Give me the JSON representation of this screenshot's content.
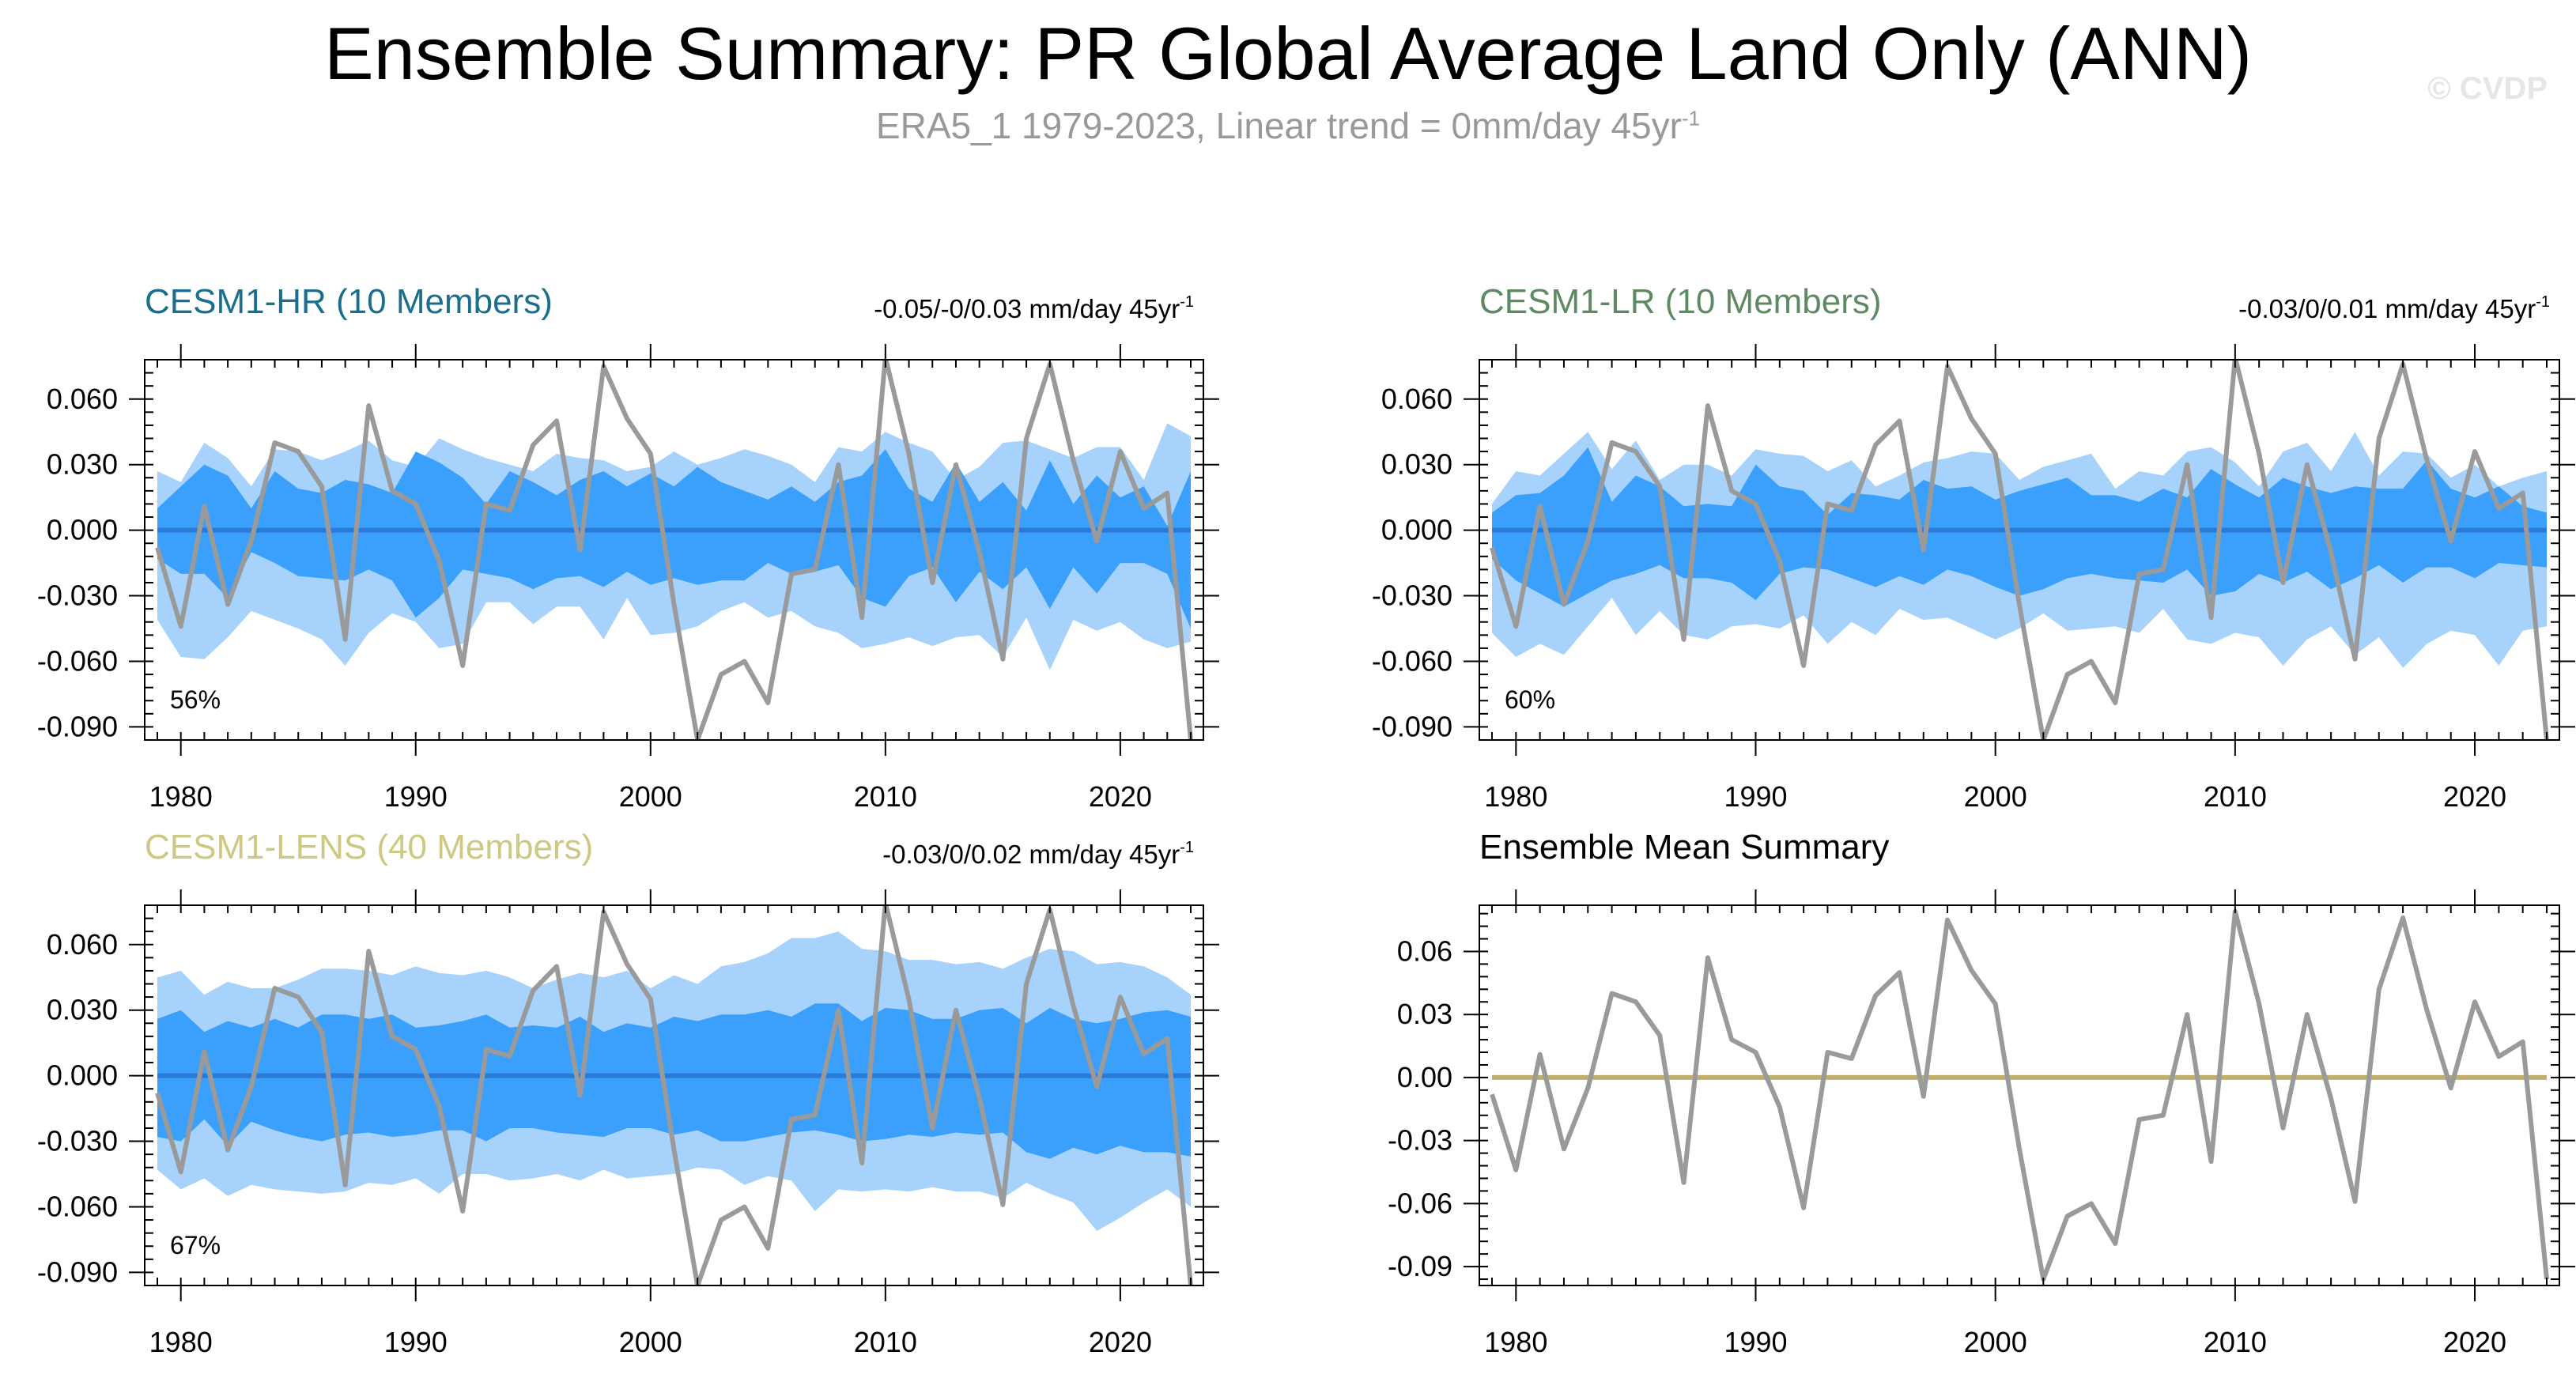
{
  "title": "Ensemble Summary: PR Global Average Land Only (ANN)",
  "subtitle": {
    "text": "ERA5_1 1979-2023, Linear trend = 0mm/day 45yr",
    "superscript": "-1"
  },
  "watermark": "© CVDP",
  "colors": {
    "obs": "#9a9a9a",
    "outer_band": "#a6d2fc",
    "inner_band": "#3ba0fb",
    "ens_mean": "#2a7ad6",
    "hr_title": "#1a6e8e",
    "lr_title": "#5d8a62",
    "lens_title": "#cdc882",
    "summary_mean": "#bfae6c"
  },
  "chart_data": [
    {
      "type": "area",
      "title": "CESM1-HR (10 Members)",
      "title_color_key": "hr_title",
      "trend_label": "-0.05/-0/0.03 mm/day 45yr",
      "trend_sup": "-1",
      "percent_label": "56%",
      "x_start": 1979,
      "ylim": [
        -0.096,
        0.078
      ],
      "yticks": [
        0.06,
        0.03,
        0.0,
        -0.03,
        -0.06,
        -0.09
      ],
      "ytick_labels": [
        "0.060",
        "0.030",
        "0.000",
        "-0.030",
        "-0.060",
        "-0.090"
      ],
      "xticks": [
        1980,
        1990,
        2000,
        2010,
        2020
      ],
      "xtick_labels": [
        "1980",
        "1990",
        "2000",
        "2010",
        "2020"
      ],
      "outer_upper": [
        0.027,
        0.022,
        0.04,
        0.033,
        0.02,
        0.037,
        0.036,
        0.032,
        0.036,
        0.041,
        0.032,
        0.029,
        0.042,
        0.037,
        0.033,
        0.03,
        0.027,
        0.035,
        0.033,
        0.032,
        0.027,
        0.029,
        0.036,
        0.03,
        0.033,
        0.037,
        0.034,
        0.03,
        0.022,
        0.038,
        0.036,
        0.045,
        0.04,
        0.036,
        0.023,
        0.029,
        0.04,
        0.041,
        0.037,
        0.033,
        0.038,
        0.038,
        0.023,
        0.049,
        0.043
      ],
      "inner_upper": [
        0.01,
        0.02,
        0.03,
        0.025,
        0.01,
        0.027,
        0.019,
        0.017,
        0.023,
        0.021,
        0.017,
        0.036,
        0.031,
        0.024,
        0.012,
        0.027,
        0.022,
        0.016,
        0.023,
        0.027,
        0.02,
        0.026,
        0.02,
        0.029,
        0.022,
        0.018,
        0.014,
        0.02,
        0.013,
        0.022,
        0.025,
        0.037,
        0.019,
        0.013,
        0.031,
        0.013,
        0.022,
        0.009,
        0.032,
        0.012,
        0.025,
        0.015,
        0.02,
        0.002,
        0.027
      ],
      "inner_lower": [
        -0.013,
        -0.02,
        -0.02,
        -0.031,
        -0.01,
        -0.015,
        -0.021,
        -0.022,
        -0.023,
        -0.018,
        -0.023,
        -0.04,
        -0.031,
        -0.018,
        -0.02,
        -0.022,
        -0.027,
        -0.022,
        -0.021,
        -0.026,
        -0.019,
        -0.025,
        -0.022,
        -0.025,
        -0.023,
        -0.023,
        -0.015,
        -0.02,
        -0.019,
        -0.016,
        -0.031,
        -0.035,
        -0.021,
        -0.017,
        -0.033,
        -0.019,
        -0.027,
        -0.017,
        -0.036,
        -0.017,
        -0.029,
        -0.015,
        -0.015,
        -0.02,
        -0.045
      ],
      "outer_lower": [
        -0.041,
        -0.058,
        -0.059,
        -0.049,
        -0.037,
        -0.041,
        -0.045,
        -0.05,
        -0.062,
        -0.047,
        -0.038,
        -0.042,
        -0.054,
        -0.052,
        -0.033,
        -0.033,
        -0.043,
        -0.035,
        -0.035,
        -0.05,
        -0.031,
        -0.048,
        -0.047,
        -0.044,
        -0.037,
        -0.033,
        -0.04,
        -0.037,
        -0.044,
        -0.047,
        -0.054,
        -0.052,
        -0.049,
        -0.053,
        -0.049,
        -0.048,
        -0.058,
        -0.04,
        -0.064,
        -0.041,
        -0.046,
        -0.042,
        -0.05,
        -0.054,
        -0.051
      ],
      "ens_mean": [
        0,
        0,
        0,
        0,
        0,
        0,
        0,
        0,
        0,
        0,
        0,
        0,
        0,
        0,
        0,
        0,
        0,
        0,
        0,
        0,
        0,
        0,
        0,
        0,
        0,
        0,
        0,
        0,
        0,
        0,
        0,
        0,
        0,
        0,
        0,
        0,
        0,
        0,
        0,
        0,
        0,
        0,
        0,
        0,
        0
      ],
      "obs": [
        -0.008,
        -0.044,
        0.011,
        -0.034,
        -0.005,
        0.04,
        0.036,
        0.02,
        -0.05,
        0.057,
        0.018,
        0.012,
        -0.014,
        -0.062,
        0.012,
        0.009,
        0.039,
        0.05,
        -0.009,
        0.075,
        0.051,
        0.035,
        -0.034,
        -0.096,
        -0.066,
        -0.06,
        -0.079,
        -0.02,
        -0.018,
        0.03,
        -0.04,
        0.079,
        0.035,
        -0.024,
        0.03,
        -0.01,
        -0.059,
        0.042,
        0.076,
        0.032,
        -0.005,
        0.036,
        0.01,
        0.017,
        -0.096
      ]
    },
    {
      "type": "area",
      "title": "CESM1-LR (10 Members)",
      "title_color_key": "lr_title",
      "trend_label": "-0.03/0/0.01 mm/day 45yr",
      "trend_sup": "-1",
      "percent_label": "60%",
      "x_start": 1979,
      "ylim": [
        -0.096,
        0.078
      ],
      "yticks": [
        0.06,
        0.03,
        0.0,
        -0.03,
        -0.06,
        -0.09
      ],
      "ytick_labels": [
        "0.060",
        "0.030",
        "0.000",
        "-0.030",
        "-0.060",
        "-0.090"
      ],
      "xticks": [
        1980,
        1990,
        2000,
        2010,
        2020
      ],
      "xtick_labels": [
        "1980",
        "1990",
        "2000",
        "2010",
        "2020"
      ],
      "outer_upper": [
        0.012,
        0.027,
        0.025,
        0.035,
        0.045,
        0.028,
        0.041,
        0.023,
        0.03,
        0.03,
        0.025,
        0.037,
        0.035,
        0.034,
        0.027,
        0.032,
        0.02,
        0.025,
        0.031,
        0.033,
        0.036,
        0.035,
        0.023,
        0.029,
        0.032,
        0.035,
        0.019,
        0.027,
        0.025,
        0.036,
        0.038,
        0.031,
        0.02,
        0.036,
        0.04,
        0.027,
        0.045,
        0.025,
        0.036,
        0.035,
        0.024,
        0.03,
        0.02,
        0.024,
        0.027
      ],
      "inner_upper": [
        0.008,
        0.016,
        0.017,
        0.025,
        0.038,
        0.013,
        0.025,
        0.02,
        0.011,
        0.012,
        0.011,
        0.03,
        0.02,
        0.018,
        0.007,
        0.017,
        0.016,
        0.014,
        0.023,
        0.019,
        0.02,
        0.014,
        0.018,
        0.021,
        0.024,
        0.016,
        0.016,
        0.013,
        0.019,
        0.015,
        0.028,
        0.021,
        0.015,
        0.024,
        0.02,
        0.017,
        0.02,
        0.019,
        0.019,
        0.032,
        0.019,
        0.015,
        0.02,
        0.011,
        0.008
      ],
      "inner_lower": [
        -0.013,
        -0.023,
        -0.029,
        -0.035,
        -0.029,
        -0.023,
        -0.02,
        -0.016,
        -0.022,
        -0.022,
        -0.024,
        -0.032,
        -0.02,
        -0.017,
        -0.018,
        -0.022,
        -0.026,
        -0.021,
        -0.025,
        -0.018,
        -0.021,
        -0.026,
        -0.03,
        -0.027,
        -0.022,
        -0.02,
        -0.022,
        -0.023,
        -0.024,
        -0.018,
        -0.03,
        -0.028,
        -0.02,
        -0.024,
        -0.019,
        -0.027,
        -0.022,
        -0.016,
        -0.024,
        -0.017,
        -0.017,
        -0.022,
        -0.015,
        -0.016,
        -0.017
      ],
      "outer_lower": [
        -0.047,
        -0.058,
        -0.052,
        -0.057,
        -0.044,
        -0.031,
        -0.048,
        -0.037,
        -0.048,
        -0.05,
        -0.044,
        -0.043,
        -0.045,
        -0.039,
        -0.052,
        -0.042,
        -0.048,
        -0.036,
        -0.041,
        -0.04,
        -0.045,
        -0.05,
        -0.045,
        -0.038,
        -0.046,
        -0.045,
        -0.044,
        -0.047,
        -0.036,
        -0.05,
        -0.052,
        -0.047,
        -0.049,
        -0.062,
        -0.05,
        -0.044,
        -0.057,
        -0.049,
        -0.063,
        -0.052,
        -0.046,
        -0.048,
        -0.062,
        -0.046,
        -0.044
      ],
      "ens_mean": [
        0,
        0,
        0,
        0,
        0,
        0,
        0,
        0,
        0,
        0,
        0,
        0,
        0,
        0,
        0,
        0,
        0,
        0,
        0,
        0,
        0,
        0,
        0,
        0,
        0,
        0,
        0,
        0,
        0,
        0,
        0,
        0,
        0,
        0,
        0,
        0,
        0,
        0,
        0,
        0,
        0,
        0,
        0,
        0,
        0
      ],
      "obs": [
        -0.008,
        -0.044,
        0.011,
        -0.034,
        -0.005,
        0.04,
        0.036,
        0.02,
        -0.05,
        0.057,
        0.018,
        0.012,
        -0.014,
        -0.062,
        0.012,
        0.009,
        0.039,
        0.05,
        -0.009,
        0.075,
        0.051,
        0.035,
        -0.034,
        -0.096,
        -0.066,
        -0.06,
        -0.079,
        -0.02,
        -0.018,
        0.03,
        -0.04,
        0.079,
        0.035,
        -0.024,
        0.03,
        -0.01,
        -0.059,
        0.042,
        0.076,
        0.032,
        -0.005,
        0.036,
        0.01,
        0.017,
        -0.096
      ]
    },
    {
      "type": "area",
      "title": "CESM1-LENS (40 Members)",
      "title_color_key": "lens_title",
      "trend_label": "-0.03/0/0.02 mm/day 45yr",
      "trend_sup": "-1",
      "percent_label": "67%",
      "x_start": 1979,
      "ylim": [
        -0.096,
        0.078
      ],
      "yticks": [
        0.06,
        0.03,
        0.0,
        -0.03,
        -0.06,
        -0.09
      ],
      "ytick_labels": [
        "0.060",
        "0.030",
        "0.000",
        "-0.030",
        "-0.060",
        "-0.090"
      ],
      "xticks": [
        1980,
        1990,
        2000,
        2010,
        2020
      ],
      "xtick_labels": [
        "1980",
        "1990",
        "2000",
        "2010",
        "2020"
      ],
      "outer_upper": [
        0.045,
        0.048,
        0.037,
        0.043,
        0.04,
        0.04,
        0.044,
        0.049,
        0.049,
        0.048,
        0.046,
        0.05,
        0.047,
        0.046,
        0.048,
        0.045,
        0.04,
        0.044,
        0.047,
        0.045,
        0.048,
        0.04,
        0.046,
        0.042,
        0.05,
        0.052,
        0.056,
        0.063,
        0.063,
        0.066,
        0.058,
        0.057,
        0.053,
        0.053,
        0.051,
        0.052,
        0.049,
        0.054,
        0.058,
        0.057,
        0.051,
        0.052,
        0.05,
        0.045,
        0.037
      ],
      "inner_upper": [
        0.026,
        0.03,
        0.02,
        0.025,
        0.022,
        0.026,
        0.022,
        0.028,
        0.028,
        0.026,
        0.028,
        0.022,
        0.023,
        0.025,
        0.028,
        0.022,
        0.023,
        0.022,
        0.027,
        0.02,
        0.024,
        0.022,
        0.027,
        0.025,
        0.028,
        0.028,
        0.03,
        0.027,
        0.033,
        0.033,
        0.025,
        0.031,
        0.03,
        0.026,
        0.026,
        0.03,
        0.031,
        0.024,
        0.031,
        0.026,
        0.024,
        0.026,
        0.029,
        0.03,
        0.027
      ],
      "inner_lower": [
        -0.028,
        -0.03,
        -0.02,
        -0.032,
        -0.021,
        -0.025,
        -0.028,
        -0.03,
        -0.027,
        -0.026,
        -0.028,
        -0.027,
        -0.025,
        -0.025,
        -0.03,
        -0.024,
        -0.024,
        -0.026,
        -0.027,
        -0.028,
        -0.024,
        -0.024,
        -0.027,
        -0.025,
        -0.03,
        -0.03,
        -0.028,
        -0.026,
        -0.025,
        -0.027,
        -0.03,
        -0.029,
        -0.027,
        -0.028,
        -0.026,
        -0.027,
        -0.026,
        -0.035,
        -0.038,
        -0.033,
        -0.036,
        -0.032,
        -0.035,
        -0.035,
        -0.037
      ],
      "outer_lower": [
        -0.043,
        -0.052,
        -0.047,
        -0.055,
        -0.05,
        -0.052,
        -0.053,
        -0.054,
        -0.053,
        -0.049,
        -0.05,
        -0.047,
        -0.054,
        -0.045,
        -0.045,
        -0.048,
        -0.047,
        -0.045,
        -0.048,
        -0.043,
        -0.047,
        -0.046,
        -0.045,
        -0.042,
        -0.043,
        -0.05,
        -0.046,
        -0.048,
        -0.062,
        -0.052,
        -0.053,
        -0.052,
        -0.053,
        -0.051,
        -0.053,
        -0.053,
        -0.056,
        -0.049,
        -0.054,
        -0.058,
        -0.071,
        -0.065,
        -0.058,
        -0.052,
        -0.06
      ],
      "ens_mean": [
        0,
        0,
        0,
        0,
        0,
        0,
        0,
        0,
        0,
        0,
        0,
        0,
        0,
        0,
        0,
        0,
        0,
        0,
        0,
        0,
        0,
        0,
        0,
        0,
        0,
        0,
        0,
        0,
        0,
        0,
        0,
        0,
        0,
        0,
        0,
        0,
        0,
        0,
        0,
        0,
        0,
        0,
        0,
        0,
        0
      ],
      "obs": [
        -0.008,
        -0.044,
        0.011,
        -0.034,
        -0.005,
        0.04,
        0.036,
        0.02,
        -0.05,
        0.057,
        0.018,
        0.012,
        -0.014,
        -0.062,
        0.012,
        0.009,
        0.039,
        0.05,
        -0.009,
        0.075,
        0.051,
        0.035,
        -0.034,
        -0.096,
        -0.066,
        -0.06,
        -0.079,
        -0.02,
        -0.018,
        0.03,
        -0.04,
        0.079,
        0.035,
        -0.024,
        0.03,
        -0.01,
        -0.059,
        0.042,
        0.076,
        0.032,
        -0.005,
        0.036,
        0.01,
        0.017,
        -0.096
      ]
    },
    {
      "type": "line",
      "title": "Ensemble Mean Summary",
      "title_color_key": "",
      "trend_label": "",
      "trend_sup": "",
      "percent_label": "",
      "x_start": 1979,
      "ylim": [
        -0.099,
        0.082
      ],
      "yticks": [
        0.06,
        0.03,
        0.0,
        -0.03,
        -0.06,
        -0.09
      ],
      "ytick_labels": [
        "0.06",
        "0.03",
        "0.00",
        "-0.03",
        "-0.06",
        "-0.09"
      ],
      "xticks": [
        1980,
        1990,
        2000,
        2010,
        2020
      ],
      "xtick_labels": [
        "1980",
        "1990",
        "2000",
        "2010",
        "2020"
      ],
      "ens_mean": [
        0,
        0,
        0,
        0,
        0,
        0,
        0,
        0,
        0,
        0,
        0,
        0,
        0,
        0,
        0,
        0,
        0,
        0,
        0,
        0,
        0,
        0,
        0,
        0,
        0,
        0,
        0,
        0,
        0,
        0,
        0,
        0,
        0,
        0,
        0,
        0,
        0,
        0,
        0,
        0,
        0,
        0,
        0,
        0,
        0
      ],
      "obs": [
        -0.008,
        -0.044,
        0.011,
        -0.034,
        -0.005,
        0.04,
        0.036,
        0.02,
        -0.05,
        0.057,
        0.018,
        0.012,
        -0.014,
        -0.062,
        0.012,
        0.009,
        0.039,
        0.05,
        -0.009,
        0.075,
        0.051,
        0.035,
        -0.034,
        -0.096,
        -0.066,
        -0.06,
        -0.079,
        -0.02,
        -0.018,
        0.03,
        -0.04,
        0.079,
        0.035,
        -0.024,
        0.03,
        -0.01,
        -0.059,
        0.042,
        0.076,
        0.032,
        -0.005,
        0.036,
        0.01,
        0.017,
        -0.096
      ]
    }
  ]
}
